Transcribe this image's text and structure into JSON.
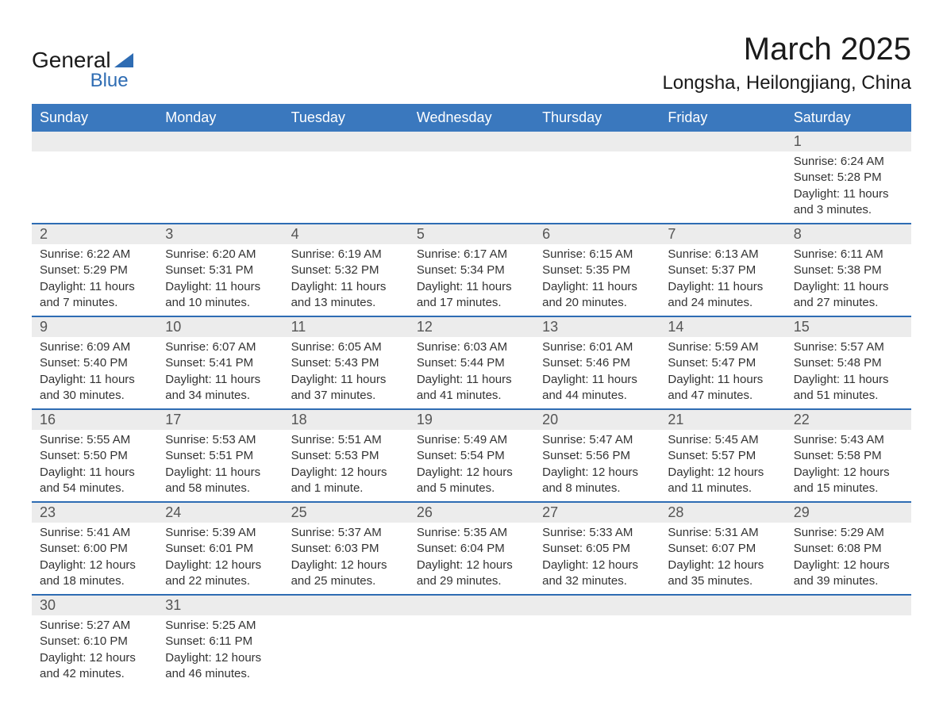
{
  "brand": {
    "word1": "General",
    "word2": "Blue"
  },
  "title": "March 2025",
  "location": "Longsha, Heilongjiang, China",
  "colors": {
    "header_bg": "#3a78be",
    "header_text": "#ffffff",
    "border": "#2e6cb3",
    "daynum_bg": "#ececec",
    "daynum_text": "#555555",
    "body_text": "#333333",
    "title_text": "#1a1a1a",
    "logo_accent": "#2e6cb3",
    "background": "#ffffff"
  },
  "typography": {
    "title_fontsize": 40,
    "location_fontsize": 24,
    "header_fontsize": 18,
    "daynum_fontsize": 18,
    "body_fontsize": 15
  },
  "weekdays": [
    "Sunday",
    "Monday",
    "Tuesday",
    "Wednesday",
    "Thursday",
    "Friday",
    "Saturday"
  ],
  "weeks": [
    [
      null,
      null,
      null,
      null,
      null,
      null,
      {
        "n": "1",
        "sr": "Sunrise: 6:24 AM",
        "ss": "Sunset: 5:28 PM",
        "dl1": "Daylight: 11 hours",
        "dl2": "and 3 minutes."
      }
    ],
    [
      {
        "n": "2",
        "sr": "Sunrise: 6:22 AM",
        "ss": "Sunset: 5:29 PM",
        "dl1": "Daylight: 11 hours",
        "dl2": "and 7 minutes."
      },
      {
        "n": "3",
        "sr": "Sunrise: 6:20 AM",
        "ss": "Sunset: 5:31 PM",
        "dl1": "Daylight: 11 hours",
        "dl2": "and 10 minutes."
      },
      {
        "n": "4",
        "sr": "Sunrise: 6:19 AM",
        "ss": "Sunset: 5:32 PM",
        "dl1": "Daylight: 11 hours",
        "dl2": "and 13 minutes."
      },
      {
        "n": "5",
        "sr": "Sunrise: 6:17 AM",
        "ss": "Sunset: 5:34 PM",
        "dl1": "Daylight: 11 hours",
        "dl2": "and 17 minutes."
      },
      {
        "n": "6",
        "sr": "Sunrise: 6:15 AM",
        "ss": "Sunset: 5:35 PM",
        "dl1": "Daylight: 11 hours",
        "dl2": "and 20 minutes."
      },
      {
        "n": "7",
        "sr": "Sunrise: 6:13 AM",
        "ss": "Sunset: 5:37 PM",
        "dl1": "Daylight: 11 hours",
        "dl2": "and 24 minutes."
      },
      {
        "n": "8",
        "sr": "Sunrise: 6:11 AM",
        "ss": "Sunset: 5:38 PM",
        "dl1": "Daylight: 11 hours",
        "dl2": "and 27 minutes."
      }
    ],
    [
      {
        "n": "9",
        "sr": "Sunrise: 6:09 AM",
        "ss": "Sunset: 5:40 PM",
        "dl1": "Daylight: 11 hours",
        "dl2": "and 30 minutes."
      },
      {
        "n": "10",
        "sr": "Sunrise: 6:07 AM",
        "ss": "Sunset: 5:41 PM",
        "dl1": "Daylight: 11 hours",
        "dl2": "and 34 minutes."
      },
      {
        "n": "11",
        "sr": "Sunrise: 6:05 AM",
        "ss": "Sunset: 5:43 PM",
        "dl1": "Daylight: 11 hours",
        "dl2": "and 37 minutes."
      },
      {
        "n": "12",
        "sr": "Sunrise: 6:03 AM",
        "ss": "Sunset: 5:44 PM",
        "dl1": "Daylight: 11 hours",
        "dl2": "and 41 minutes."
      },
      {
        "n": "13",
        "sr": "Sunrise: 6:01 AM",
        "ss": "Sunset: 5:46 PM",
        "dl1": "Daylight: 11 hours",
        "dl2": "and 44 minutes."
      },
      {
        "n": "14",
        "sr": "Sunrise: 5:59 AM",
        "ss": "Sunset: 5:47 PM",
        "dl1": "Daylight: 11 hours",
        "dl2": "and 47 minutes."
      },
      {
        "n": "15",
        "sr": "Sunrise: 5:57 AM",
        "ss": "Sunset: 5:48 PM",
        "dl1": "Daylight: 11 hours",
        "dl2": "and 51 minutes."
      }
    ],
    [
      {
        "n": "16",
        "sr": "Sunrise: 5:55 AM",
        "ss": "Sunset: 5:50 PM",
        "dl1": "Daylight: 11 hours",
        "dl2": "and 54 minutes."
      },
      {
        "n": "17",
        "sr": "Sunrise: 5:53 AM",
        "ss": "Sunset: 5:51 PM",
        "dl1": "Daylight: 11 hours",
        "dl2": "and 58 minutes."
      },
      {
        "n": "18",
        "sr": "Sunrise: 5:51 AM",
        "ss": "Sunset: 5:53 PM",
        "dl1": "Daylight: 12 hours",
        "dl2": "and 1 minute."
      },
      {
        "n": "19",
        "sr": "Sunrise: 5:49 AM",
        "ss": "Sunset: 5:54 PM",
        "dl1": "Daylight: 12 hours",
        "dl2": "and 5 minutes."
      },
      {
        "n": "20",
        "sr": "Sunrise: 5:47 AM",
        "ss": "Sunset: 5:56 PM",
        "dl1": "Daylight: 12 hours",
        "dl2": "and 8 minutes."
      },
      {
        "n": "21",
        "sr": "Sunrise: 5:45 AM",
        "ss": "Sunset: 5:57 PM",
        "dl1": "Daylight: 12 hours",
        "dl2": "and 11 minutes."
      },
      {
        "n": "22",
        "sr": "Sunrise: 5:43 AM",
        "ss": "Sunset: 5:58 PM",
        "dl1": "Daylight: 12 hours",
        "dl2": "and 15 minutes."
      }
    ],
    [
      {
        "n": "23",
        "sr": "Sunrise: 5:41 AM",
        "ss": "Sunset: 6:00 PM",
        "dl1": "Daylight: 12 hours",
        "dl2": "and 18 minutes."
      },
      {
        "n": "24",
        "sr": "Sunrise: 5:39 AM",
        "ss": "Sunset: 6:01 PM",
        "dl1": "Daylight: 12 hours",
        "dl2": "and 22 minutes."
      },
      {
        "n": "25",
        "sr": "Sunrise: 5:37 AM",
        "ss": "Sunset: 6:03 PM",
        "dl1": "Daylight: 12 hours",
        "dl2": "and 25 minutes."
      },
      {
        "n": "26",
        "sr": "Sunrise: 5:35 AM",
        "ss": "Sunset: 6:04 PM",
        "dl1": "Daylight: 12 hours",
        "dl2": "and 29 minutes."
      },
      {
        "n": "27",
        "sr": "Sunrise: 5:33 AM",
        "ss": "Sunset: 6:05 PM",
        "dl1": "Daylight: 12 hours",
        "dl2": "and 32 minutes."
      },
      {
        "n": "28",
        "sr": "Sunrise: 5:31 AM",
        "ss": "Sunset: 6:07 PM",
        "dl1": "Daylight: 12 hours",
        "dl2": "and 35 minutes."
      },
      {
        "n": "29",
        "sr": "Sunrise: 5:29 AM",
        "ss": "Sunset: 6:08 PM",
        "dl1": "Daylight: 12 hours",
        "dl2": "and 39 minutes."
      }
    ],
    [
      {
        "n": "30",
        "sr": "Sunrise: 5:27 AM",
        "ss": "Sunset: 6:10 PM",
        "dl1": "Daylight: 12 hours",
        "dl2": "and 42 minutes."
      },
      {
        "n": "31",
        "sr": "Sunrise: 5:25 AM",
        "ss": "Sunset: 6:11 PM",
        "dl1": "Daylight: 12 hours",
        "dl2": "and 46 minutes."
      },
      null,
      null,
      null,
      null,
      null
    ]
  ]
}
